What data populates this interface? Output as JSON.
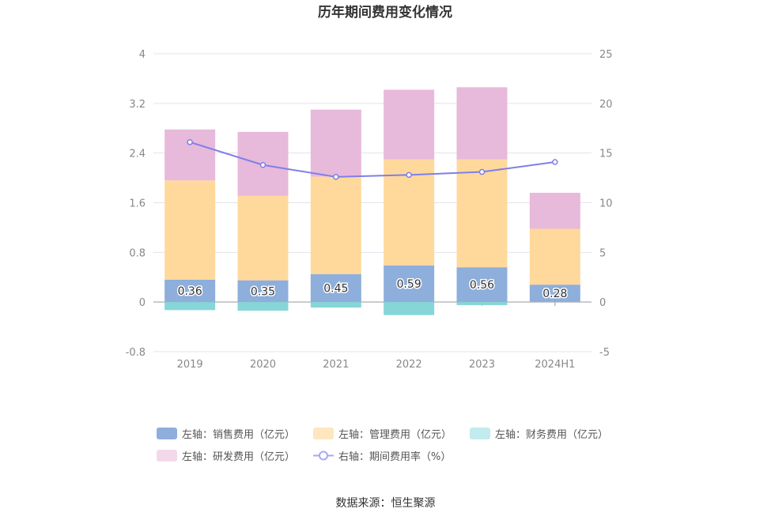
{
  "chart_data": {
    "type": "bar",
    "title": "历年期间费用变化情况",
    "categories": [
      "2019",
      "2020",
      "2021",
      "2022",
      "2023",
      "2024H1"
    ],
    "left_axis": {
      "min": -0.8,
      "max": 4,
      "ticks": [
        "-0.8",
        "0",
        "0.8",
        "1.6",
        "2.4",
        "3.2",
        "4"
      ]
    },
    "right_axis": {
      "min": -5,
      "max": 25,
      "ticks": [
        "-5",
        "0",
        "5",
        "10",
        "15",
        "20",
        "25"
      ]
    },
    "series": [
      {
        "name": "左轴：销售费用（亿元）",
        "axis": "left",
        "stack": "cost",
        "color": "#8eaedc",
        "values": [
          0.36,
          0.35,
          0.45,
          0.59,
          0.56,
          0.28
        ],
        "labels": [
          "0.36",
          "0.35",
          "0.45",
          "0.59",
          "0.56",
          "0.28"
        ]
      },
      {
        "name": "左轴：管理费用（亿元）",
        "axis": "left",
        "stack": "cost",
        "color": "#ffd99c",
        "values": [
          1.6,
          1.36,
          1.57,
          1.71,
          1.74,
          0.9
        ]
      },
      {
        "name": "左轴：财务费用（亿元）",
        "axis": "left",
        "stack": "cost",
        "color": "#86d6d8",
        "values": [
          -0.13,
          -0.14,
          -0.09,
          -0.21,
          -0.05,
          0.0
        ]
      },
      {
        "name": "左轴：研发费用（亿元）",
        "axis": "left",
        "stack": "cost",
        "color": "#e7b9da",
        "values": [
          0.82,
          1.03,
          1.08,
          1.12,
          1.16,
          0.58
        ]
      },
      {
        "name": "右轴：期间费用率（%）",
        "axis": "right",
        "type": "line",
        "color": "#7f7fe8",
        "values": [
          16.1,
          13.8,
          12.6,
          12.8,
          13.1,
          14.1
        ]
      }
    ],
    "legend": {
      "position": "bottom"
    }
  },
  "legend_colors": {
    "sales": "#8eaedc",
    "mgmt": "#fde6c0",
    "fin": "#c3eaec",
    "rd": "#f3d8ea",
    "rate": "#a8a8f0"
  },
  "source": "数据来源：恒生聚源"
}
